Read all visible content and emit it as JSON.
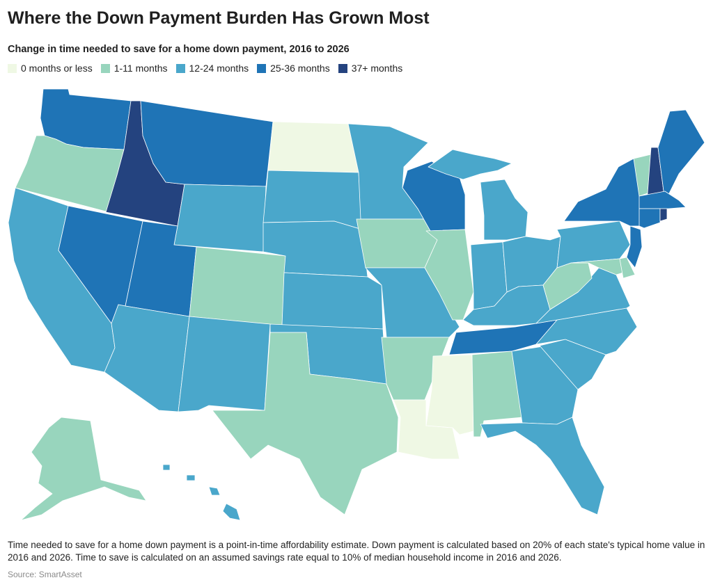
{
  "title": "Where the Down Payment Burden Has Grown Most",
  "subtitle": "Change in time needed to save for a home down payment, 2016 to 2026",
  "legend": [
    {
      "label": "0 months or less",
      "color": "#eff8e4"
    },
    {
      "label": "1-11 months",
      "color": "#98d5bd"
    },
    {
      "label": "12-24 months",
      "color": "#4aa7cb"
    },
    {
      "label": "25-36 months",
      "color": "#1f74b6"
    },
    {
      "label": "37+ months",
      "color": "#24437f"
    }
  ],
  "states": {
    "WA": "25-36 months",
    "OR": "1-11 months",
    "CA": "12-24 months",
    "ID": "37+ months",
    "NV": "25-36 months",
    "MT": "25-36 months",
    "WY": "12-24 months",
    "UT": "25-36 months",
    "AZ": "12-24 months",
    "CO": "1-11 months",
    "NM": "12-24 months",
    "ND": "0 months or less",
    "SD": "12-24 months",
    "NE": "12-24 months",
    "KS": "12-24 months",
    "OK": "12-24 months",
    "TX": "1-11 months",
    "MN": "12-24 months",
    "IA": "1-11 months",
    "MO": "12-24 months",
    "AR": "1-11 months",
    "LA": "0 months or less",
    "WI": "25-36 months",
    "IL": "1-11 months",
    "MI": "12-24 months",
    "IN": "12-24 months",
    "OH": "12-24 months",
    "KY": "12-24 months",
    "TN": "25-36 months",
    "MS": "0 months or less",
    "AL": "1-11 months",
    "GA": "12-24 months",
    "FL": "12-24 months",
    "SC": "12-24 months",
    "NC": "12-24 months",
    "VA": "12-24 months",
    "WV": "1-11 months",
    "MD": "1-11 months",
    "DE": "1-11 months",
    "PA": "12-24 months",
    "NJ": "25-36 months",
    "NY": "25-36 months",
    "CT": "25-36 months",
    "RI": "37+ months",
    "MA": "25-36 months",
    "VT": "1-11 months",
    "NH": "37+ months",
    "ME": "25-36 months",
    "AK": "1-11 months",
    "HI": "12-24 months"
  },
  "note": "Time needed to save for a home down payment is a point-in-time affordability estimate. Down payment is calculated based on 20% of each state's typical home value in 2016 and 2026. Time to save is calculated on an assumed savings rate equal to 10% of median household income in 2016 and 2026.",
  "source": "Source: SmartAsset"
}
